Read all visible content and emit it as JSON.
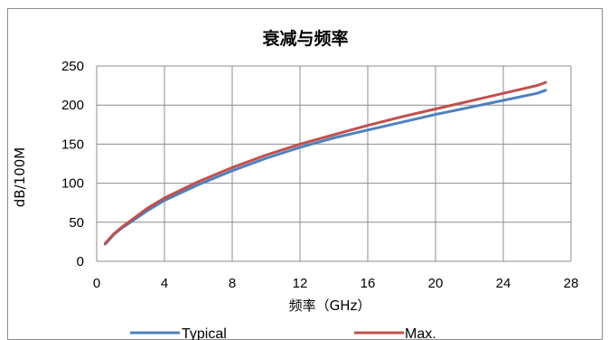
{
  "chart_data": {
    "type": "line",
    "title": "衰减与频率",
    "xlabel": "频率（GHz）",
    "ylabel": "dB/100M",
    "xlim": [
      0,
      28
    ],
    "ylim": [
      0,
      250
    ],
    "xticks": [
      0,
      4,
      8,
      12,
      16,
      20,
      24,
      28
    ],
    "yticks": [
      0,
      50,
      100,
      150,
      200,
      250
    ],
    "grid": true,
    "legend_position": "bottom",
    "series": [
      {
        "name": "Typical",
        "color": "#4f81bd",
        "x": [
          0.5,
          1,
          1.5,
          2,
          3,
          4,
          6,
          8,
          10,
          12,
          14,
          16,
          18,
          20,
          22,
          24,
          26,
          26.5
        ],
        "y": [
          22,
          34,
          43,
          50,
          65,
          78,
          98,
          116,
          132,
          146,
          158,
          168,
          178,
          188,
          197,
          206,
          215,
          219
        ]
      },
      {
        "name": "Max.",
        "color": "#c0504d",
        "x": [
          0.5,
          1,
          1.5,
          2,
          3,
          4,
          6,
          8,
          10,
          12,
          14,
          16,
          18,
          20,
          22,
          24,
          26,
          26.5
        ],
        "y": [
          23,
          35,
          44,
          52,
          68,
          81,
          102,
          120,
          136,
          150,
          162,
          174,
          185,
          195,
          205,
          215,
          225,
          229
        ]
      }
    ]
  }
}
